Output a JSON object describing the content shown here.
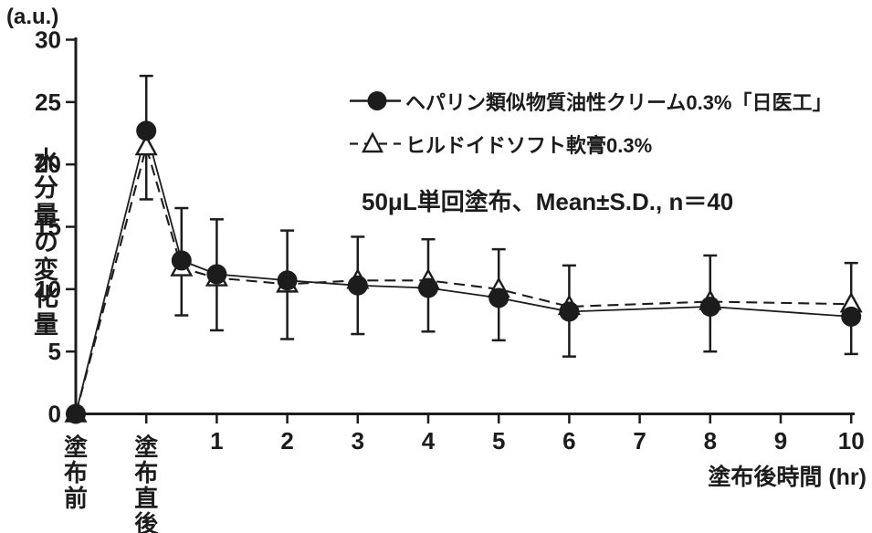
{
  "colors": {
    "ink": "#1c1c1c",
    "background": "#ffffff"
  },
  "chart_data": {
    "type": "line",
    "title": "",
    "annotation": "50μL単回塗布、Mean±S.D., n＝40",
    "y_axis": {
      "unit": "(a.u.)",
      "label": "水分量の変化量",
      "range": [
        0,
        30
      ],
      "ticks": [
        0,
        5,
        10,
        15,
        20,
        25,
        30
      ]
    },
    "x_axis": {
      "label": "塗布後時間 (hr)",
      "ticks": [
        {
          "t": -1,
          "label": "塗布前",
          "vertical": true
        },
        {
          "t": 0,
          "label": "塗布直後",
          "vertical": true
        },
        {
          "t": 1,
          "label": "1"
        },
        {
          "t": 2,
          "label": "2"
        },
        {
          "t": 3,
          "label": "3"
        },
        {
          "t": 4,
          "label": "4"
        },
        {
          "t": 5,
          "label": "5"
        },
        {
          "t": 6,
          "label": "6"
        },
        {
          "t": 7,
          "label": "7"
        },
        {
          "t": 8,
          "label": "8"
        },
        {
          "t": 9,
          "label": "9"
        },
        {
          "t": 10,
          "label": "10"
        }
      ]
    },
    "t": [
      -1,
      0,
      0.5,
      1,
      2,
      3,
      4,
      5,
      6,
      8,
      10
    ],
    "series": [
      {
        "name": "ヘパリン類似物質油性クリーム0.3%「日医工」",
        "marker": "filled-circle",
        "line": "solid",
        "values": [
          0,
          22.7,
          12.3,
          11.2,
          10.7,
          10.3,
          10.1,
          9.3,
          8.2,
          8.6,
          7.8
        ]
      },
      {
        "name": "ヒルドイドソフト軟膏0.3%",
        "marker": "open-triangle",
        "line": "dashed",
        "values": [
          0,
          21.4,
          11.7,
          10.9,
          10.4,
          10.7,
          10.7,
          10.0,
          8.6,
          9.0,
          8.8
        ]
      }
    ],
    "error_bars": {
      "t": [
        0,
        0.5,
        1,
        2,
        3,
        4,
        5,
        6,
        8,
        10
      ],
      "upper": [
        27.1,
        16.5,
        15.6,
        14.7,
        14.2,
        14.0,
        13.2,
        11.9,
        12.7,
        12.1
      ],
      "lower": [
        17.2,
        7.9,
        6.7,
        6.0,
        6.4,
        6.6,
        5.9,
        4.6,
        5.0,
        4.8
      ]
    },
    "legend_position": "upper-right-inside",
    "grid": false
  }
}
